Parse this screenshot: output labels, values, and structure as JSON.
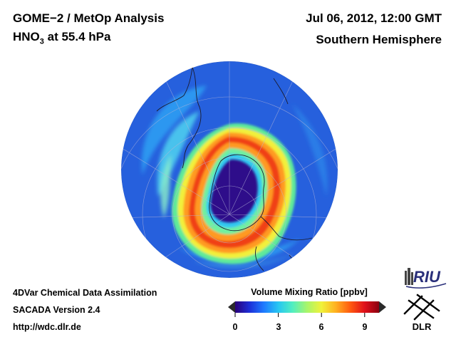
{
  "header": {
    "title_line1": "GOME−2 / MetOp Analysis",
    "title_species": "HNO",
    "title_subscript": "3",
    "title_rest": " at 55.4 hPa",
    "datetime": "Jul 06, 2012, 12:00 GMT",
    "region": "Southern Hemisphere"
  },
  "footer": {
    "line1": "4DVar Chemical Data Assimilation",
    "line2": "SACADA Version 2.4",
    "line3": "http://wdc.dlr.de"
  },
  "colorbar": {
    "title": "Volume Mixing Ratio [ppbv]",
    "ticks": [
      "0",
      "3",
      "6",
      "9"
    ],
    "min": 0,
    "max": 10,
    "colors": [
      "#2a007a",
      "#1d2fd8",
      "#1e7bff",
      "#27c6f2",
      "#52eec0",
      "#a8f56a",
      "#f0f23a",
      "#ffb020",
      "#ff5a10",
      "#e0101a",
      "#8a0010"
    ]
  },
  "logos": {
    "riu": "RIU",
    "dlr": "DLR"
  }
}
